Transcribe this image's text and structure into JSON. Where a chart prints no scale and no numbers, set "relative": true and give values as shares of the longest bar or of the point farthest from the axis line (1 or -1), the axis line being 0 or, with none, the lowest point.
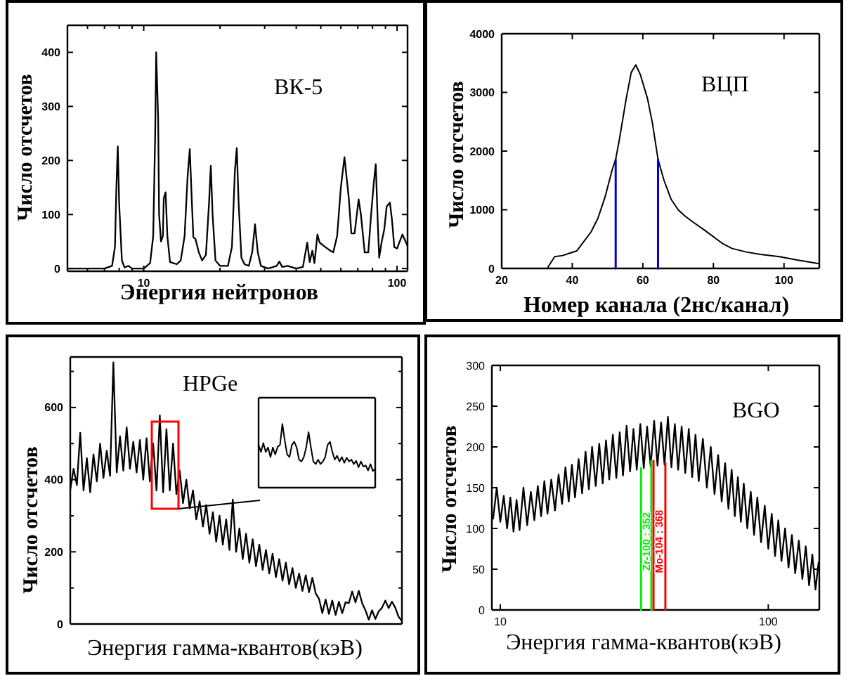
{
  "chart_data": [
    {
      "type": "line",
      "title": "ВК-5",
      "xlabel": "Энергия нейтронов",
      "ylabel": "Число отсчетов",
      "log": "x",
      "x": [
        5,
        7,
        7.5,
        7.7,
        7.8,
        7.9,
        8,
        8.2,
        8.4,
        8.7,
        9,
        10,
        10.6,
        10.9,
        11.1,
        11.2,
        11.4,
        11.5,
        11.7,
        11.9,
        12,
        12.2,
        12.4,
        12.7,
        13.5,
        14,
        14.5,
        14.9,
        15.2,
        15.5,
        15.7,
        16,
        16.5,
        17,
        17.6,
        18.1,
        18.4,
        18.7,
        19.2,
        20,
        21.5,
        22.3,
        22.9,
        23.3,
        23.7,
        24.3,
        25,
        26,
        26.8,
        27.5,
        28.2,
        29,
        31,
        33.5,
        34.3,
        35.2,
        37,
        40,
        42.5,
        44.2,
        45.2,
        46.3,
        47.2,
        48.5,
        49.5,
        52,
        54.5,
        56,
        58,
        60,
        62,
        64.5,
        66,
        68,
        70.5,
        72,
        74.5,
        77,
        79,
        81,
        82.4,
        84,
        85,
        87,
        89,
        91,
        93.7,
        95.5,
        97.5,
        100,
        105,
        110
      ],
      "series": [
        {
          "color": "#000000",
          "values": [
            0,
            0,
            5,
            40,
            150,
            226,
            120,
            15,
            2,
            5,
            0,
            0,
            10,
            60,
            250,
            400,
            280,
            100,
            50,
            60,
            130,
            141,
            60,
            12,
            8,
            15,
            60,
            170,
            221,
            120,
            58,
            55,
            30,
            15,
            25,
            120,
            190,
            100,
            15,
            5,
            5,
            40,
            180,
            223,
            120,
            20,
            8,
            5,
            30,
            82,
            30,
            5,
            0,
            5,
            13,
            3,
            5,
            0,
            3,
            48,
            12,
            33,
            10,
            63,
            48,
            40,
            33,
            30,
            60,
            150,
            206,
            130,
            65,
            65,
            128,
            100,
            30,
            30,
            100,
            160,
            193,
            80,
            20,
            50,
            72,
            115,
            122,
            90,
            40,
            37,
            63,
            42
          ]
        }
      ],
      "xlim": [
        5,
        110
      ],
      "ylim": [
        -5,
        450
      ],
      "xticks": [
        {
          "value": 6,
          "label": null
        },
        {
          "value": 7,
          "label": null
        },
        {
          "value": 8,
          "label": null
        },
        {
          "value": 9,
          "label": null
        },
        10,
        {
          "value": 20,
          "label": null
        },
        {
          "value": 30,
          "label": null
        },
        {
          "value": 40,
          "label": null
        },
        {
          "value": 50,
          "label": null
        },
        {
          "value": 60,
          "label": null
        },
        {
          "value": 70,
          "label": null
        },
        {
          "value": 80,
          "label": null
        },
        {
          "value": 90,
          "label": null
        },
        100
      ],
      "yticks": [
        0,
        100,
        200,
        300,
        400
      ]
    },
    {
      "type": "line",
      "title": "ВЦП",
      "xlabel": "Номер канала (2нс/канал)",
      "ylabel": "Число отсчетов",
      "series": [
        {
          "color": "#000000",
          "x": [
            33.1,
            35,
            37.3,
            39.3,
            41.3,
            43.3,
            45.3,
            47.3,
            49.3,
            51.3,
            52.3,
            53.3,
            55.3,
            56.7,
            58,
            59.3,
            61.3,
            62.7,
            64.3,
            66,
            68,
            70,
            72,
            74.7,
            77.3,
            80,
            82.7,
            85.3,
            89.3,
            93.3,
            98.7,
            104,
            110
          ],
          "values": [
            20,
            200,
            220,
            260,
            300,
            460,
            620,
            860,
            1220,
            1680,
            1860,
            2180,
            2900,
            3340,
            3470,
            3300,
            2900,
            2480,
            1860,
            1500,
            1180,
            1000,
            890,
            770,
            660,
            540,
            420,
            340,
            280,
            240,
            200,
            140,
            80
          ]
        },
        {
          "color": "#0000cc",
          "x": [
            52.3,
            52.3
          ],
          "values": [
            0,
            1860
          ]
        },
        {
          "color": "#0000cc",
          "x": [
            64.3,
            64.3
          ],
          "values": [
            0,
            1860
          ]
        }
      ],
      "xlim": [
        20,
        110
      ],
      "ylim": [
        0,
        4000
      ],
      "xticks": [
        20,
        40,
        60,
        80,
        100
      ],
      "yticks": [
        0,
        1000,
        2000,
        3000,
        4000
      ]
    },
    {
      "type": "line",
      "title": "HPGe",
      "xlabel": "Энергия гамма-квантов(кэВ)",
      "ylabel": "Число отсчетов",
      "tick_labels": "y",
      "categories": [
        null,
        null,
        null,
        null,
        null,
        null,
        null,
        null,
        null,
        null,
        null,
        null,
        null,
        null,
        null,
        null,
        null,
        null,
        null,
        null,
        null,
        null,
        null,
        null,
        null,
        null,
        null,
        null,
        null,
        null,
        null,
        null,
        null,
        null,
        null,
        null,
        null,
        null,
        null,
        null,
        null,
        null,
        null,
        null,
        null,
        null,
        null,
        null,
        null,
        null,
        null,
        null,
        null,
        null,
        null,
        null,
        null,
        null,
        null,
        null,
        null,
        null,
        null,
        null,
        null,
        null,
        null,
        null,
        null,
        null,
        null,
        null,
        null,
        null,
        null,
        null,
        null,
        null,
        null,
        null,
        null,
        null,
        null,
        null,
        null,
        null,
        null,
        null,
        null,
        null,
        null,
        null,
        null,
        null,
        null,
        null,
        null,
        null,
        null,
        null,
        null
      ],
      "values": [
        372,
        430,
        385,
        530,
        370,
        460,
        365,
        470,
        395,
        500,
        405,
        480,
        410,
        725,
        420,
        520,
        425,
        545,
        430,
        505,
        420,
        510,
        400,
        515,
        395,
        500,
        370,
        578,
        365,
        540,
        370,
        500,
        360,
        425,
        335,
        400,
        320,
        370,
        290,
        340,
        270,
        330,
        250,
        310,
        228,
        300,
        220,
        290,
        205,
        345,
        200,
        265,
        180,
        250,
        170,
        235,
        160,
        220,
        150,
        205,
        140,
        195,
        130,
        180,
        120,
        170,
        110,
        155,
        100,
        140,
        92,
        135,
        88,
        128,
        85,
        70,
        30,
        68,
        28,
        65,
        25,
        62,
        30,
        60,
        58,
        90,
        60,
        92,
        58,
        38,
        12,
        38,
        14,
        35,
        45,
        65,
        44,
        62,
        45,
        20,
        8
      ],
      "color": "#000000",
      "ylim": [
        0,
        740
      ],
      "yticks": [
        0,
        {
          "value": 100,
          "label": null
        },
        200,
        {
          "value": 300,
          "label": null
        },
        400,
        {
          "value": 500,
          "label": null
        },
        600,
        {
          "value": 700,
          "label": null
        }
      ]
    },
    {
      "type": "line",
      "relative": true,
      "tick_labels": false,
      "categories": [
        null,
        null,
        null,
        null,
        null,
        null,
        null,
        null,
        null,
        null,
        null,
        null,
        null,
        null,
        null,
        null,
        null,
        null,
        null,
        null,
        null,
        null,
        null,
        null,
        null,
        null,
        null,
        null,
        null,
        null,
        null,
        null,
        null,
        null,
        null,
        null,
        null,
        null,
        null,
        null,
        null,
        null,
        null,
        null,
        null,
        null,
        null,
        null,
        null,
        null
      ],
      "values": [
        0.67,
        0.56,
        0.7,
        0.56,
        0.63,
        0.48,
        0.63,
        0.52,
        0.64,
        0.67,
        1,
        0.74,
        0.52,
        0.48,
        0.67,
        0.72,
        0.63,
        0.44,
        0.41,
        0.48,
        0.63,
        0.87,
        0.63,
        0.41,
        0.37,
        0.44,
        0.37,
        0.41,
        0.48,
        0.67,
        0.72,
        0.56,
        0.44,
        0.5,
        0.41,
        0.48,
        0.39,
        0.47,
        0.41,
        0.44,
        0.37,
        0.42,
        0.32,
        0.41,
        0.33,
        0.35,
        0.27,
        0.37,
        0.26,
        0.3
      ],
      "color": "#000000"
    },
    {
      "type": "line",
      "title": "BGO",
      "xlabel": "Энергия гамма-квантов(кэВ)",
      "ylabel": "Число отсчетов",
      "log": "x",
      "x": [
        9.4,
        9.7,
        10,
        10.3,
        10.6,
        10.9,
        11.2,
        11.5,
        11.8,
        12.2,
        12.6,
        13,
        13.4,
        13.8,
        14.2,
        14.6,
        15,
        15.5,
        16,
        16.5,
        17,
        17.5,
        18,
        18.5,
        19,
        19.6,
        20.2,
        20.8,
        21.4,
        22,
        22.7,
        23.4,
        24.1,
        24.8,
        25.5,
        26.3,
        27.1,
        27.9,
        28.7,
        29.6,
        30.5,
        31.4,
        32.3,
        33.3,
        34.3,
        35.3,
        36.4,
        37.5,
        38.6,
        39.8,
        41,
        42.2,
        43.5,
        44.8,
        46.1,
        47.5,
        49,
        50.5,
        52,
        53.5,
        55,
        57,
        59,
        61,
        63,
        65,
        67,
        69,
        71,
        73,
        75,
        77,
        79,
        81,
        83.5,
        86,
        88.5,
        91,
        94,
        97,
        100,
        103,
        106,
        109,
        112,
        115.5,
        119,
        122.5,
        126,
        130,
        134,
        138,
        142,
        146,
        150,
        154
      ],
      "series": [
        {
          "color": "#000000",
          "values": [
            112,
            150,
            108,
            140,
            100,
            138,
            96,
            135,
            98,
            150,
            104,
            145,
            110,
            152,
            115,
            158,
            118,
            160,
            122,
            166,
            130,
            175,
            133,
            178,
            138,
            185,
            143,
            194,
            148,
            200,
            152,
            204,
            155,
            208,
            160,
            215,
            162,
            218,
            165,
            226,
            170,
            222,
            172,
            228,
            174,
            225,
            176,
            232,
            177,
            230,
            178,
            237,
            175,
            228,
            172,
            225,
            168,
            222,
            163,
            215,
            158,
            210,
            150,
            200,
            142,
            190,
            133,
            180,
            124,
            172,
            115,
            163,
            108,
            155,
            100,
            145,
            92,
            138,
            83,
            128,
            75,
            118,
            66,
            110,
            60,
            100,
            52,
            92,
            45,
            85,
            38,
            78,
            30,
            68,
            25,
            58
          ]
        },
        {
          "name": "Zr-100 : 352",
          "color": "#00ee00",
          "x": [
            33.5,
            33.5
          ],
          "values": [
            0,
            174
          ]
        },
        {
          "color": "#00ee00",
          "x": [
            36.6,
            36.6
          ],
          "values": [
            0,
            183
          ]
        },
        {
          "name": "Mo-104 : 368",
          "color": "#ff0000",
          "x": [
            37.3,
            37.3
          ],
          "values": [
            0,
            183
          ]
        },
        {
          "color": "#ff0000",
          "x": [
            41.3,
            41.3
          ],
          "values": [
            0,
            180
          ]
        }
      ],
      "xlim": [
        9.3,
        155
      ],
      "ylim": [
        0,
        300
      ],
      "xticks": [
        10,
        100
      ],
      "yticks": [
        0,
        50,
        100,
        150,
        200,
        250,
        300
      ]
    }
  ]
}
